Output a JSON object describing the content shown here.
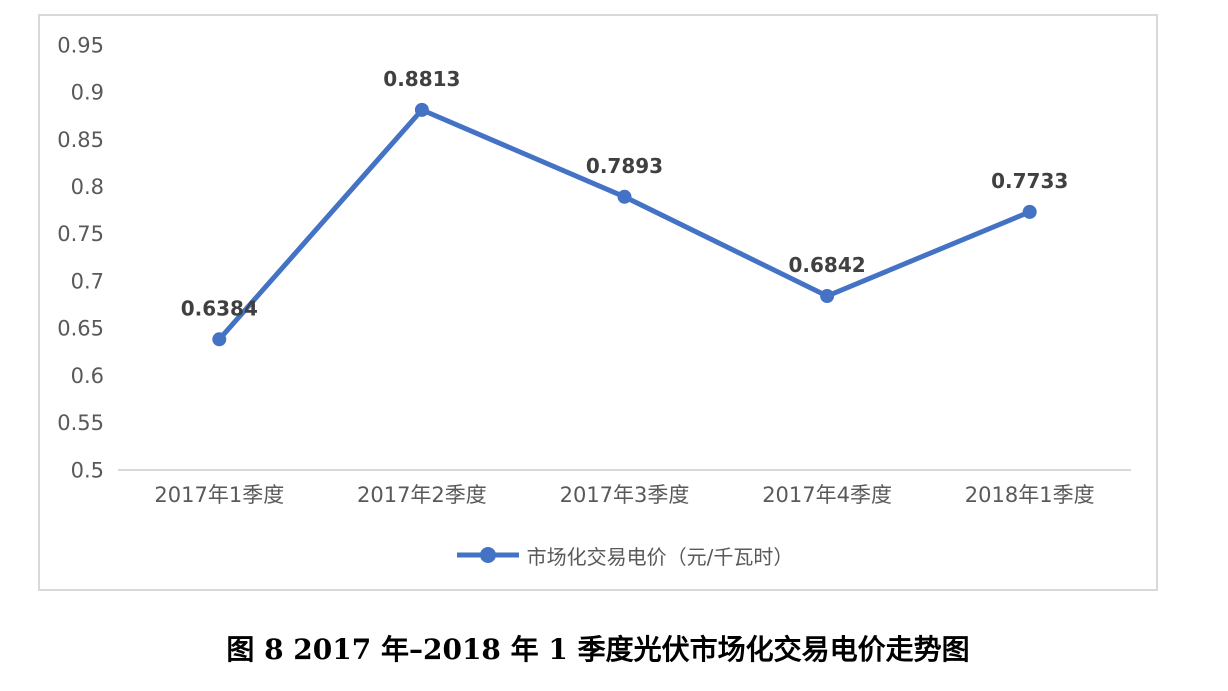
{
  "figure": {
    "caption": "图 8 2017 年–2018 年 1 季度光伏市场化交易电价走势图"
  },
  "legend": {
    "label": "市场化交易电价（元/千瓦时）"
  },
  "chart_data": {
    "type": "line",
    "title": "",
    "xlabel": "",
    "ylabel": "",
    "categories": [
      "2017年1季度",
      "2017年2季度",
      "2017年3季度",
      "2017年4季度",
      "2018年1季度"
    ],
    "series": [
      {
        "name": "市场化交易电价（元/千瓦时）",
        "values": [
          0.6384,
          0.8813,
          0.7893,
          0.6842,
          0.7733
        ],
        "data_labels": [
          "0.6384",
          "0.8813",
          "0.7893",
          "0.6842",
          "0.7733"
        ]
      }
    ],
    "ylim": [
      0.5,
      0.95
    ],
    "ytick_step": 0.05,
    "ytick_labels": [
      "0.95",
      "0.9",
      "0.85",
      "0.8",
      "0.75",
      "0.7",
      "0.65",
      "0.6",
      "0.55",
      "0.5"
    ],
    "grid": false,
    "legend_position": "bottom",
    "data_label_position": "above",
    "colors": {
      "line": "#4472C4",
      "marker": "#4472C4",
      "data_label": "#404040",
      "axis_text": "#595959",
      "axis_line": "#d9d9d9",
      "frame_border": "#d9d9d9"
    }
  }
}
